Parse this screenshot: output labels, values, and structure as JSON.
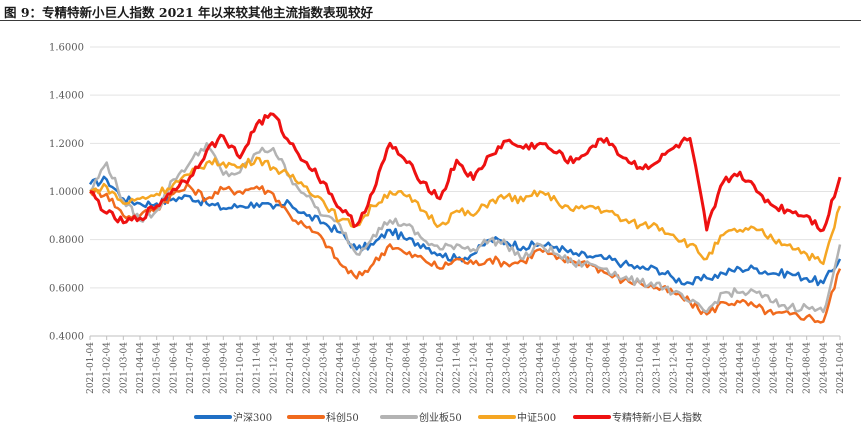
{
  "figure_title": "图 9：专精特新小巨人指数 2021 年以来较其他主流指数表现较好",
  "chart_data": {
    "type": "line",
    "title": "",
    "xlabel": "",
    "ylabel": "",
    "ylim": [
      0.4,
      1.6
    ],
    "yticks": [
      "0.4000",
      "0.6000",
      "0.8000",
      "1.0000",
      "1.2000",
      "1.4000",
      "1.6000"
    ],
    "grid": "horizontal",
    "legend_position": "bottom",
    "x": [
      "2021-01-04",
      "2021-02-04",
      "2021-03-04",
      "2021-04-04",
      "2021-05-04",
      "2021-06-04",
      "2021-07-04",
      "2021-08-04",
      "2021-09-04",
      "2021-10-04",
      "2021-11-04",
      "2021-12-04",
      "2022-01-04",
      "2022-02-04",
      "2022-03-04",
      "2022-04-04",
      "2022-05-04",
      "2022-06-04",
      "2022-07-04",
      "2022-08-04",
      "2022-09-04",
      "2022-10-04",
      "2022-11-04",
      "2022-12-04",
      "2023-01-04",
      "2023-02-04",
      "2023-03-04",
      "2023-04-04",
      "2023-05-04",
      "2023-06-04",
      "2023-07-04",
      "2023-08-04",
      "2023-09-04",
      "2023-10-04",
      "2023-11-04",
      "2023-12-04",
      "2024-01-04",
      "2024-02-04",
      "2024-03-04",
      "2024-04-04",
      "2024-05-04",
      "2024-06-04",
      "2024-07-04",
      "2024-08-04",
      "2024-09-04",
      "2024-10-04"
    ],
    "series": [
      {
        "name": "沪深300",
        "color": "#1f6fc5",
        "values": [
          1.03,
          1.05,
          0.97,
          0.95,
          0.95,
          0.97,
          0.98,
          0.95,
          0.93,
          0.94,
          0.95,
          0.93,
          0.95,
          0.9,
          0.87,
          0.83,
          0.76,
          0.78,
          0.84,
          0.8,
          0.78,
          0.74,
          0.72,
          0.74,
          0.8,
          0.79,
          0.77,
          0.78,
          0.77,
          0.74,
          0.73,
          0.72,
          0.7,
          0.68,
          0.68,
          0.64,
          0.62,
          0.64,
          0.66,
          0.68,
          0.68,
          0.66,
          0.66,
          0.64,
          0.62,
          0.72
        ]
      },
      {
        "name": "科创50",
        "color": "#f06a1d",
        "values": [
          1.0,
          0.99,
          0.9,
          0.9,
          0.93,
          0.99,
          1.02,
          0.97,
          1.01,
          1.0,
          1.02,
          0.99,
          0.9,
          0.85,
          0.8,
          0.7,
          0.64,
          0.7,
          0.78,
          0.74,
          0.72,
          0.68,
          0.72,
          0.7,
          0.72,
          0.7,
          0.71,
          0.76,
          0.72,
          0.71,
          0.7,
          0.66,
          0.63,
          0.62,
          0.6,
          0.58,
          0.54,
          0.49,
          0.54,
          0.54,
          0.52,
          0.49,
          0.49,
          0.48,
          0.46,
          0.68
        ]
      },
      {
        "name": "创业板50",
        "color": "#b3b3b3",
        "values": [
          1.0,
          1.12,
          0.96,
          0.88,
          0.92,
          1.05,
          1.12,
          1.2,
          1.07,
          1.08,
          1.16,
          1.18,
          1.06,
          0.98,
          0.9,
          0.86,
          0.74,
          0.82,
          0.88,
          0.86,
          0.8,
          0.76,
          0.78,
          0.76,
          0.8,
          0.78,
          0.72,
          0.78,
          0.74,
          0.7,
          0.7,
          0.68,
          0.64,
          0.62,
          0.62,
          0.58,
          0.54,
          0.5,
          0.58,
          0.58,
          0.58,
          0.54,
          0.52,
          0.52,
          0.5,
          0.78
        ]
      },
      {
        "name": "中证500",
        "color": "#f5a623",
        "values": [
          1.0,
          1.02,
          0.95,
          0.97,
          0.99,
          1.03,
          1.07,
          1.12,
          1.12,
          1.1,
          1.14,
          1.1,
          1.06,
          1.02,
          0.96,
          0.88,
          0.86,
          0.94,
          1.0,
          0.98,
          0.92,
          0.86,
          0.92,
          0.9,
          0.96,
          0.98,
          0.96,
          1.0,
          0.96,
          0.92,
          0.94,
          0.92,
          0.88,
          0.86,
          0.86,
          0.82,
          0.78,
          0.72,
          0.82,
          0.84,
          0.84,
          0.8,
          0.78,
          0.74,
          0.7,
          0.94
        ]
      },
      {
        "name": "专精特新小巨人指数",
        "color": "#ee1111",
        "values": [
          1.0,
          0.91,
          0.87,
          0.89,
          0.94,
          1.01,
          1.06,
          1.17,
          1.23,
          1.14,
          1.28,
          1.32,
          1.2,
          1.12,
          1.04,
          0.93,
          0.86,
          1.0,
          1.2,
          1.12,
          1.04,
          0.97,
          1.13,
          1.05,
          1.15,
          1.21,
          1.18,
          1.2,
          1.16,
          1.12,
          1.18,
          1.22,
          1.14,
          1.1,
          1.12,
          1.18,
          1.22,
          0.84,
          1.04,
          1.08,
          1.0,
          0.94,
          0.92,
          0.9,
          0.84,
          1.06
        ]
      }
    ]
  }
}
